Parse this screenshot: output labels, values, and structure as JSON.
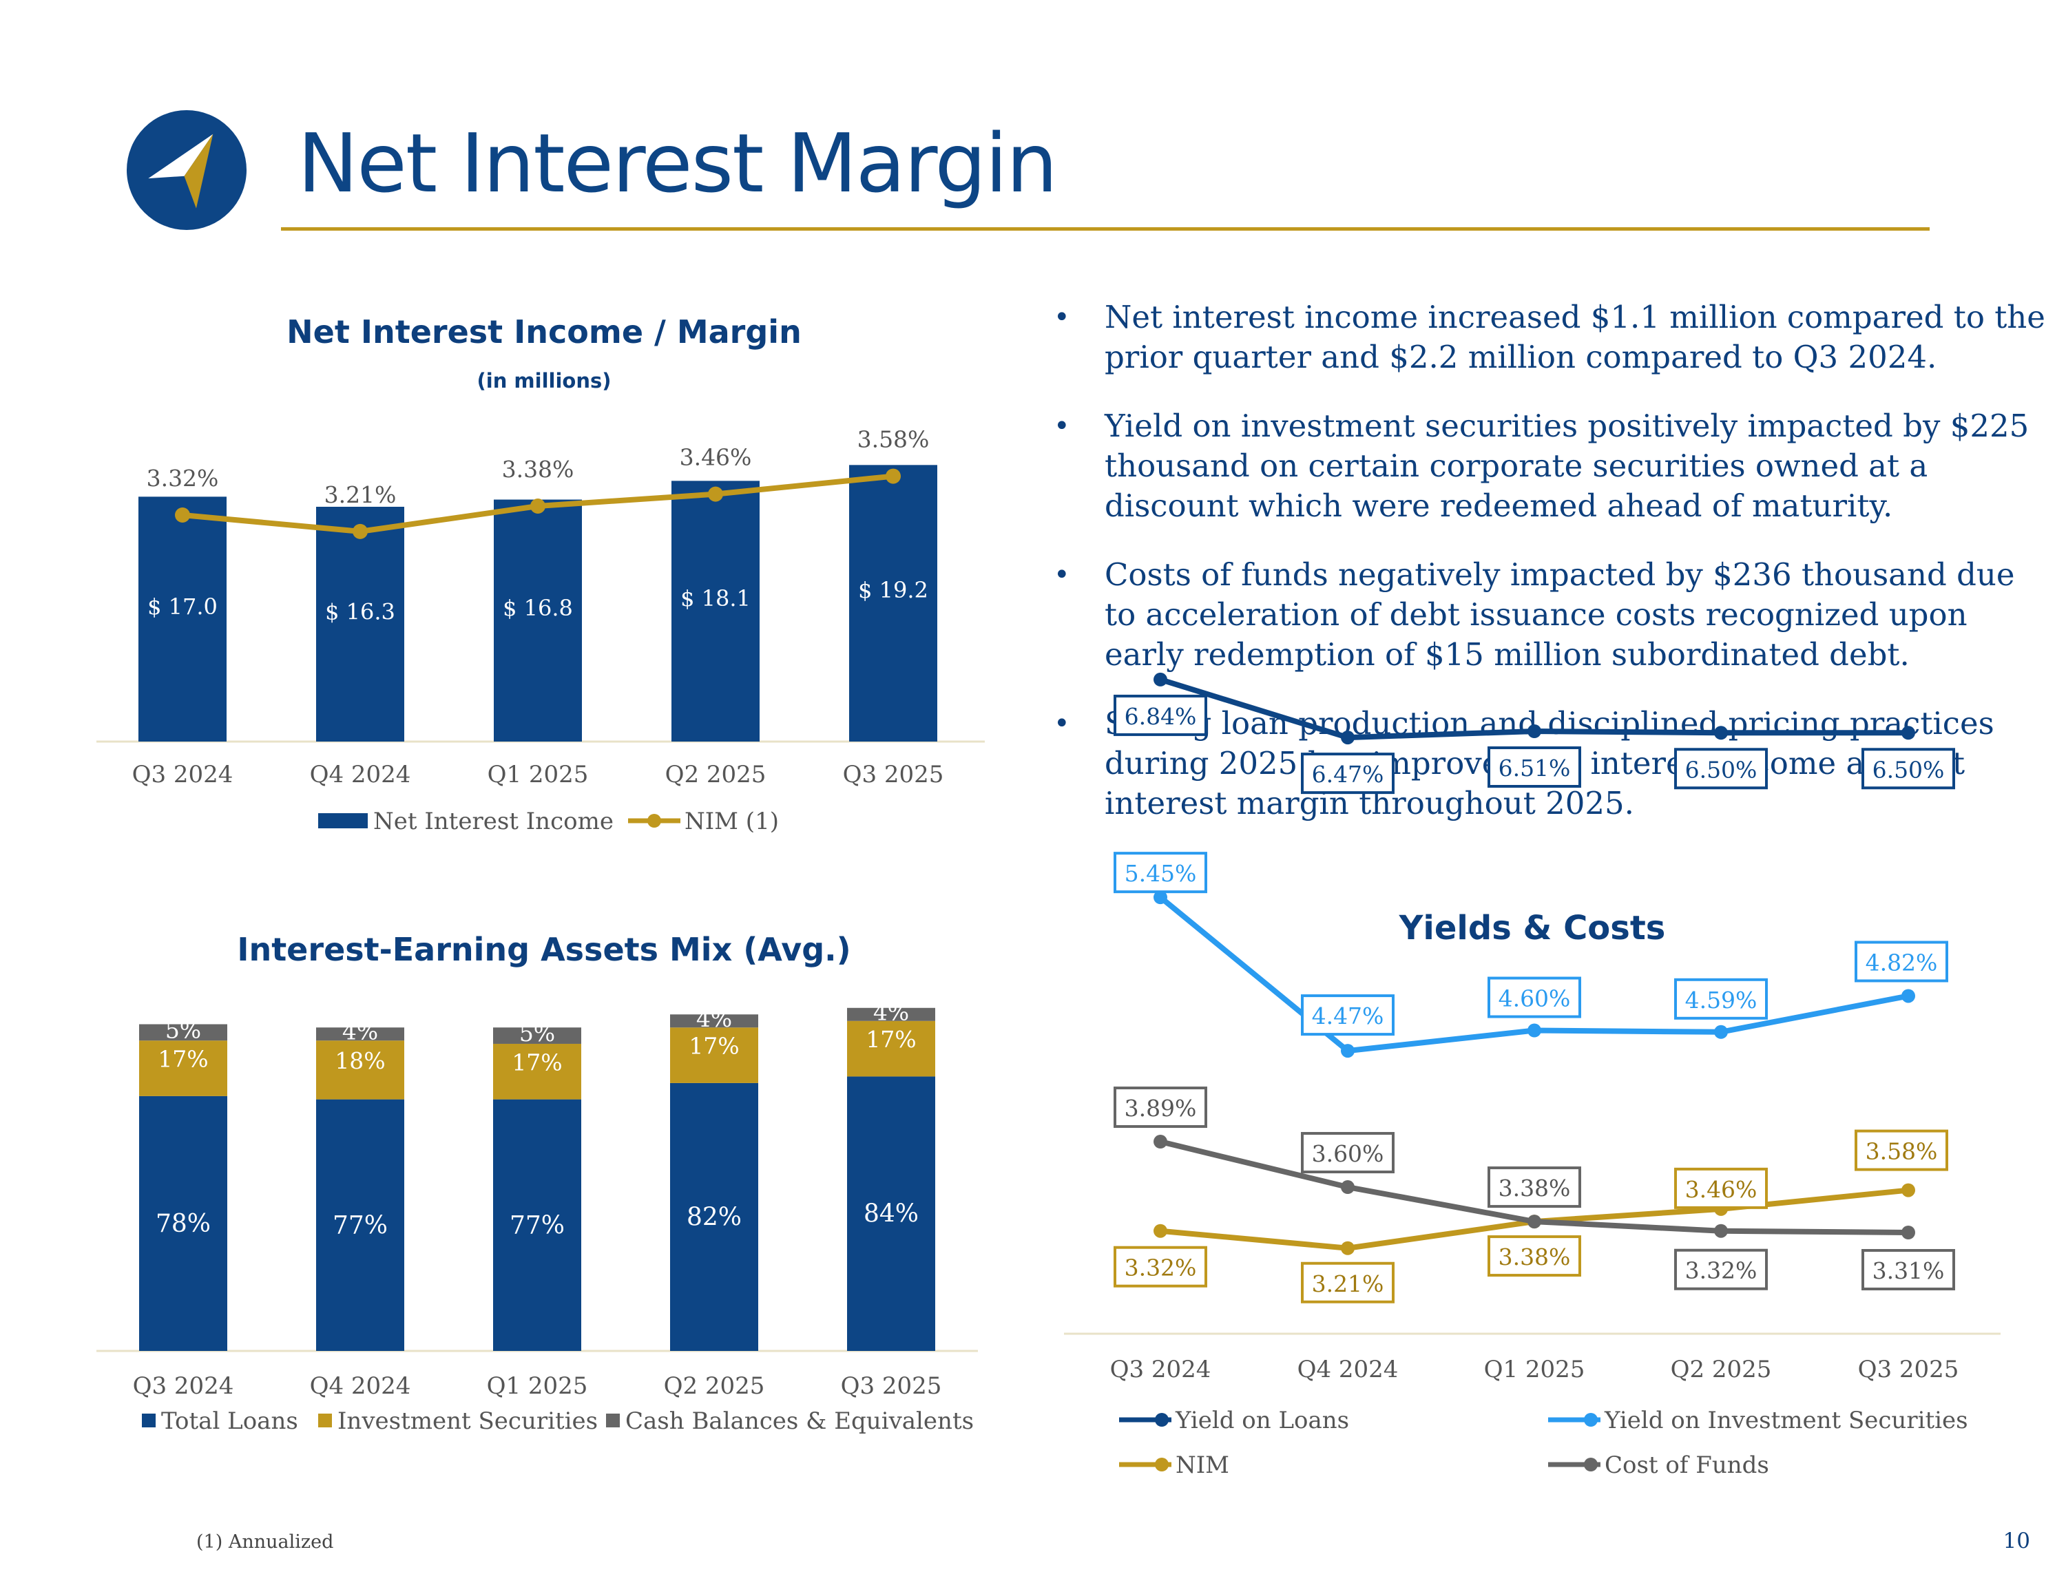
{
  "page": {
    "title": "Net Interest Margin",
    "footnote": "(1) Annualized",
    "page_number": "10",
    "colors": {
      "navy": "#0d4585",
      "gold": "#c0981e",
      "light_blue": "#2a9bf0",
      "gray": "#666666"
    },
    "logo_icon": "compass-arrow-logo-icon"
  },
  "bullets": [
    "Net interest income increased $1.1 million compared to the prior quarter and $2.2 million compared to Q3 2024.",
    "Yield on investment securities positively impacted by $225 thousand on certain corporate securities owned at a discount which were redeemed ahead of maturity.",
    "Costs of funds negatively impacted by $236 thousand due to acceleration of debt issuance costs recognized upon early redemption of $15 million subordinated debt.",
    "Strong loan production and disciplined pricing practices during 2025 has improved net interest income and net interest margin throughout 2025."
  ],
  "chart_data": [
    {
      "id": "nii",
      "type": "bar",
      "title": "Net Interest Income / Margin",
      "subtitle": "(in millions)",
      "categories": [
        "Q3 2024",
        "Q4 2024",
        "Q1 2025",
        "Q2 2025",
        "Q3 2025"
      ],
      "series": [
        {
          "name": "Net Interest Income",
          "type": "bar",
          "values": [
            17.0,
            16.3,
            16.8,
            18.1,
            19.2
          ],
          "labels": [
            "$ 17.0",
            "$ 16.3",
            "$ 16.8",
            "$ 18.1",
            "$ 19.2"
          ],
          "color": "#0d4585"
        },
        {
          "name": "NIM (1)",
          "type": "line",
          "values": [
            3.32,
            3.21,
            3.38,
            3.46,
            3.58
          ],
          "labels": [
            "3.32%",
            "3.21%",
            "3.38%",
            "3.46%",
            "3.58%"
          ],
          "color": "#c0981e"
        }
      ],
      "legend": "bottom"
    },
    {
      "id": "mix",
      "type": "bar",
      "stacked": true,
      "title": "Interest-Earning Assets Mix (Avg.)",
      "categories": [
        "Q3 2024",
        "Q4 2024",
        "Q1 2025",
        "Q2 2025",
        "Q3 2025"
      ],
      "series": [
        {
          "name": "Total Loans",
          "values": [
            78,
            77,
            77,
            82,
            84
          ],
          "labels": [
            "78%",
            "77%",
            "77%",
            "82%",
            "84%"
          ],
          "color": "#0d4585"
        },
        {
          "name": "Investment Securities",
          "values": [
            17,
            18,
            17,
            17,
            17
          ],
          "labels": [
            "17%",
            "18%",
            "17%",
            "17%",
            "17%"
          ],
          "color": "#c0981e"
        },
        {
          "name": "Cash Balances & Equivalents",
          "values": [
            5,
            4,
            5,
            4,
            4
          ],
          "labels": [
            "5%",
            "4%",
            "5%",
            "4%",
            "4%"
          ],
          "color": "#666666"
        }
      ],
      "legend": "bottom"
    },
    {
      "id": "yields",
      "type": "line",
      "title": "Yields & Costs",
      "categories": [
        "Q3 2024",
        "Q4 2024",
        "Q1 2025",
        "Q2 2025",
        "Q3 2025"
      ],
      "series": [
        {
          "name": "Yield on Loans",
          "values": [
            6.84,
            6.47,
            6.51,
            6.5,
            6.5
          ],
          "labels": [
            "6.84%",
            "6.47%",
            "6.51%",
            "6.50%",
            "6.50%"
          ],
          "color": "#0d4585"
        },
        {
          "name": "Yield on Investment Securities",
          "values": [
            5.45,
            4.47,
            4.6,
            4.59,
            4.82
          ],
          "labels": [
            "5.45%",
            "4.47%",
            "4.60%",
            "4.59%",
            "4.82%"
          ],
          "color": "#2a9bf0"
        },
        {
          "name": "NIM",
          "values": [
            3.32,
            3.21,
            3.38,
            3.46,
            3.58
          ],
          "labels": [
            "3.32%",
            "3.21%",
            "3.38%",
            "3.46%",
            "3.58%"
          ],
          "color": "#c0981e"
        },
        {
          "name": "Cost of Funds",
          "values": [
            3.89,
            3.6,
            3.38,
            3.32,
            3.31
          ],
          "labels": [
            "3.89%",
            "3.60%",
            "3.38%",
            "3.32%",
            "3.31%"
          ],
          "color": "#666666"
        }
      ],
      "legend": "bottom"
    }
  ]
}
